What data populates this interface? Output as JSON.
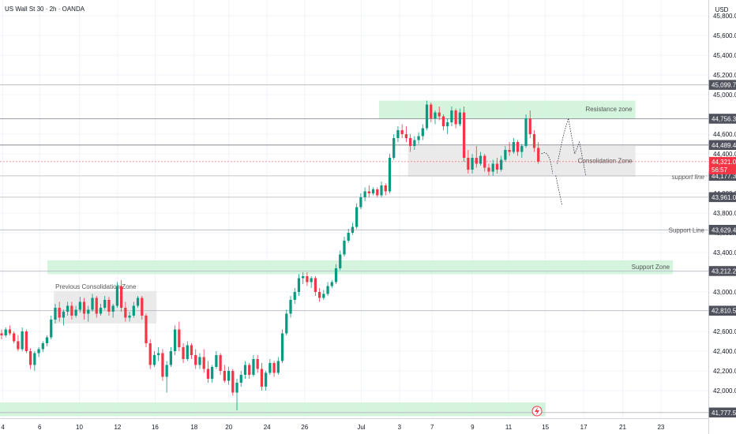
{
  "header": {
    "symbol_title": "US Wall St 30 · 2h · OANDA"
  },
  "price_axis": {
    "currency": "USD",
    "ticks": [
      "45,800.0",
      "45,600.0",
      "45,400.0",
      "45,200.0",
      "45,000.0",
      "44,600.0",
      "44,400.0",
      "44,000.0",
      "43,800.0",
      "43,600.0",
      "43,400.0",
      "43,200.0",
      "43,000.0",
      "42,600.0",
      "42,400.0",
      "42,200.0",
      "42,000.0"
    ],
    "tick_values": [
      45800,
      45600,
      45400,
      45200,
      45000,
      44600,
      44400,
      44000,
      43800,
      43600,
      43400,
      43200,
      43000,
      42600,
      42400,
      42200,
      42000
    ]
  },
  "time_axis": {
    "labels": [
      "4",
      "6",
      "10",
      "12",
      "16",
      "18",
      "20",
      "24",
      "26",
      "Jul",
      "3",
      "7",
      "9",
      "11",
      "15",
      "17",
      "21",
      "23"
    ],
    "positions": [
      0.004,
      0.056,
      0.112,
      0.166,
      0.219,
      0.274,
      0.323,
      0.377,
      0.43,
      0.51,
      0.564,
      0.61,
      0.667,
      0.718,
      0.77,
      0.824,
      0.879,
      0.933
    ]
  },
  "chart_data": {
    "type": "candlestick",
    "title": "US Wall St 30 · 2h · OANDA",
    "ylim": [
      41720,
      45960
    ],
    "current_price": {
      "value": 44321.0,
      "label": "44,321.0",
      "countdown": "56:57",
      "color": "#f23645"
    },
    "levels": [
      {
        "name": "resistance-level",
        "value": 44756.3,
        "label": "44,756.3",
        "style": "solid",
        "color": "#787b86"
      },
      {
        "name": "upper-level",
        "value": 44489.4,
        "label": "44,489.4",
        "style": "solid",
        "color": "#787b86"
      },
      {
        "name": "support-line-level",
        "value": 44177.3,
        "label": "44,177.3",
        "style": "solid",
        "color": "#b2b5be",
        "note": "support line"
      },
      {
        "name": "lower-level",
        "value": 43961.0,
        "label": "43,961.0",
        "style": "solid",
        "color": "#b2b5be"
      },
      {
        "name": "support-level-2",
        "value": 43629.4,
        "label": "43,629.4",
        "style": "solid",
        "color": "#b2b5be",
        "note": "Support Line"
      },
      {
        "name": "support-zone-level",
        "value": 43212.2,
        "label": "43,212.2",
        "style": "solid",
        "color": "#b2b5be"
      },
      {
        "name": "mid-level",
        "value": 42810.5,
        "label": "42,810.5",
        "style": "solid",
        "color": "#b2b5be"
      },
      {
        "name": "top-level",
        "value": 45099.7,
        "label": "45,099.7",
        "style": "solid",
        "color": "#b2b5be"
      },
      {
        "name": "bottom-level",
        "value": 41777.5,
        "label": "41,777.5",
        "style": "solid",
        "color": "#b2b5be"
      }
    ],
    "zones": [
      {
        "name": "resistance-zone",
        "label": "Resistance zone",
        "y_top": 44940,
        "y_bottom": 44760,
        "x_start": 0.535,
        "x_end": 0.897,
        "color": "#ccf2d8"
      },
      {
        "name": "consolidation-zone",
        "label": "Consolidation Zone",
        "y_top": 44480,
        "y_bottom": 44170,
        "x_start": 0.576,
        "x_end": 0.897,
        "color": "#e6e6e6"
      },
      {
        "name": "support-zone",
        "label": "Support Zone",
        "y_top": 43320,
        "y_bottom": 43180,
        "x_start": 0.067,
        "x_end": 0.95,
        "color": "#ccf2d8"
      },
      {
        "name": "previous-consolidation-zone",
        "label": "Previous Consolidation Zone",
        "y_top": 43010,
        "y_bottom": 42680,
        "x_start": 0.076,
        "x_end": 0.221,
        "color": "#e6e6e6"
      },
      {
        "name": "bottom-zone",
        "label": "",
        "y_top": 41880,
        "y_bottom": 41740,
        "x_start": 0.0,
        "x_end": 0.77,
        "color": "#ccf2d8"
      }
    ],
    "annotations": [
      {
        "name": "support-line-label",
        "text": "support line"
      },
      {
        "name": "support-line-label-2",
        "text": "Support Line"
      }
    ],
    "colors": {
      "up": "#089981",
      "down": "#f23645",
      "grid": "#f0f3fa"
    },
    "candles": [
      [
        42580,
        42620,
        42520,
        42560
      ],
      [
        42560,
        42640,
        42540,
        42620
      ],
      [
        42620,
        42660,
        42560,
        42580
      ],
      [
        42580,
        42600,
        42480,
        42500
      ],
      [
        42500,
        42560,
        42400,
        42420
      ],
      [
        42420,
        42640,
        42400,
        42600
      ],
      [
        42600,
        42620,
        42380,
        42400
      ],
      [
        42400,
        42430,
        42220,
        42260
      ],
      [
        42260,
        42400,
        42200,
        42380
      ],
      [
        42380,
        42440,
        42340,
        42420
      ],
      [
        42420,
        42500,
        42390,
        42480
      ],
      [
        42480,
        42560,
        42450,
        42540
      ],
      [
        42540,
        42760,
        42520,
        42720
      ],
      [
        42720,
        42880,
        42680,
        42840
      ],
      [
        42840,
        42900,
        42700,
        42740
      ],
      [
        42740,
        42820,
        42660,
        42800
      ],
      [
        42800,
        42900,
        42760,
        42860
      ],
      [
        42860,
        42900,
        42720,
        42760
      ],
      [
        42760,
        42860,
        42740,
        42820
      ],
      [
        42820,
        42950,
        42790,
        42900
      ],
      [
        42900,
        42940,
        42720,
        42780
      ],
      [
        42780,
        42860,
        42700,
        42820
      ],
      [
        42820,
        42980,
        42800,
        42940
      ],
      [
        42940,
        42960,
        42740,
        42780
      ],
      [
        42780,
        42880,
        42760,
        42840
      ],
      [
        42840,
        42960,
        42820,
        42920
      ],
      [
        42920,
        42950,
        42760,
        42800
      ],
      [
        42800,
        42880,
        42740,
        42860
      ],
      [
        42860,
        43100,
        42840,
        43060
      ],
      [
        43060,
        43120,
        42800,
        42840
      ],
      [
        42840,
        42900,
        42700,
        42740
      ],
      [
        42740,
        42800,
        42700,
        42760
      ],
      [
        42760,
        42900,
        42740,
        42860
      ],
      [
        42860,
        42960,
        42840,
        42940
      ],
      [
        42940,
        42960,
        42720,
        42760
      ],
      [
        42760,
        42780,
        42440,
        42480
      ],
      [
        42480,
        42520,
        42220,
        42260
      ],
      [
        42260,
        42400,
        42240,
        42360
      ],
      [
        42360,
        42440,
        42300,
        42380
      ],
      [
        42380,
        42420,
        42100,
        42140
      ],
      [
        42140,
        42300,
        41980,
        42260
      ],
      [
        42260,
        42440,
        42240,
        42400
      ],
      [
        42400,
        42660,
        42360,
        42620
      ],
      [
        42620,
        42700,
        42400,
        42440
      ],
      [
        42440,
        42480,
        42280,
        42320
      ],
      [
        42320,
        42500,
        42300,
        42460
      ],
      [
        42460,
        42480,
        42320,
        42360
      ],
      [
        42360,
        42420,
        42220,
        42260
      ],
      [
        42260,
        42380,
        42220,
        42340
      ],
      [
        42340,
        42420,
        42180,
        42220
      ],
      [
        42220,
        42300,
        42080,
        42120
      ],
      [
        42120,
        42260,
        42080,
        42240
      ],
      [
        42240,
        42400,
        42220,
        42360
      ],
      [
        42360,
        42380,
        42160,
        42200
      ],
      [
        42200,
        42260,
        42080,
        42100
      ],
      [
        42100,
        42240,
        42060,
        42200
      ],
      [
        42200,
        42220,
        41950,
        41980
      ],
      [
        41980,
        42120,
        41800,
        42080
      ],
      [
        42080,
        42200,
        42040,
        42160
      ],
      [
        42160,
        42300,
        42120,
        42260
      ],
      [
        42260,
        42280,
        42120,
        42160
      ],
      [
        42160,
        42360,
        42140,
        42320
      ],
      [
        42320,
        42360,
        42180,
        42220
      ],
      [
        42220,
        42280,
        42000,
        42040
      ],
      [
        42040,
        42200,
        42000,
        42180
      ],
      [
        42180,
        42320,
        42160,
        42280
      ],
      [
        42280,
        42300,
        42140,
        42180
      ],
      [
        42180,
        42340,
        42160,
        42300
      ],
      [
        42300,
        42620,
        42280,
        42580
      ],
      [
        42580,
        42820,
        42560,
        42780
      ],
      [
        42780,
        42960,
        42740,
        42920
      ],
      [
        42920,
        43040,
        42880,
        43000
      ],
      [
        43000,
        43180,
        42960,
        43140
      ],
      [
        43140,
        43200,
        43080,
        43160
      ],
      [
        43160,
        43200,
        43060,
        43100
      ],
      [
        43100,
        43160,
        43040,
        43140
      ],
      [
        43140,
        43160,
        42960,
        43000
      ],
      [
        43000,
        43040,
        42900,
        42940
      ],
      [
        42940,
        43020,
        42920,
        42980
      ],
      [
        42980,
        43100,
        42960,
        43060
      ],
      [
        43060,
        43120,
        43040,
        43100
      ],
      [
        43100,
        43280,
        43080,
        43240
      ],
      [
        43240,
        43420,
        43220,
        43380
      ],
      [
        43380,
        43560,
        43360,
        43520
      ],
      [
        43520,
        43640,
        43500,
        43600
      ],
      [
        43600,
        43700,
        43580,
        43660
      ],
      [
        43660,
        43900,
        43640,
        43860
      ],
      [
        43860,
        44000,
        43840,
        43960
      ],
      [
        43960,
        44060,
        43920,
        44020
      ],
      [
        44020,
        44080,
        43960,
        44000
      ],
      [
        44000,
        44060,
        43980,
        44040
      ],
      [
        44040,
        44060,
        43960,
        43980
      ],
      [
        43980,
        44120,
        43960,
        44080
      ],
      [
        44080,
        44100,
        43980,
        44020
      ],
      [
        44020,
        44400,
        44000,
        44360
      ],
      [
        44360,
        44600,
        44340,
        44560
      ],
      [
        44560,
        44680,
        44520,
        44640
      ],
      [
        44640,
        44700,
        44560,
        44600
      ],
      [
        44600,
        44680,
        44520,
        44560
      ],
      [
        44560,
        44600,
        44420,
        44480
      ],
      [
        44480,
        44580,
        44440,
        44540
      ],
      [
        44540,
        44620,
        44500,
        44580
      ],
      [
        44580,
        44700,
        44540,
        44660
      ],
      [
        44660,
        44940,
        44640,
        44900
      ],
      [
        44900,
        44920,
        44720,
        44760
      ],
      [
        44760,
        44840,
        44700,
        44820
      ],
      [
        44820,
        44880,
        44740,
        44780
      ],
      [
        44780,
        44800,
        44640,
        44680
      ],
      [
        44680,
        44760,
        44600,
        44720
      ],
      [
        44720,
        44880,
        44680,
        44840
      ],
      [
        44840,
        44860,
        44660,
        44700
      ],
      [
        44700,
        44860,
        44680,
        44820
      ],
      [
        44820,
        44880,
        44320,
        44360
      ],
      [
        44360,
        44440,
        44200,
        44240
      ],
      [
        44240,
        44400,
        44200,
        44360
      ],
      [
        44360,
        44480,
        44260,
        44300
      ],
      [
        44300,
        44420,
        44280,
        44380
      ],
      [
        44380,
        44400,
        44220,
        44260
      ],
      [
        44260,
        44300,
        44180,
        44220
      ],
      [
        44220,
        44340,
        44180,
        44300
      ],
      [
        44300,
        44360,
        44200,
        44240
      ],
      [
        44240,
        44380,
        44220,
        44340
      ],
      [
        44340,
        44480,
        44320,
        44440
      ],
      [
        44440,
        44520,
        44380,
        44420
      ],
      [
        44420,
        44560,
        44400,
        44520
      ],
      [
        44520,
        44540,
        44380,
        44420
      ],
      [
        44420,
        44500,
        44360,
        44480
      ],
      [
        44480,
        44800,
        44460,
        44760
      ],
      [
        44760,
        44840,
        44560,
        44600
      ],
      [
        44600,
        44640,
        44420,
        44460
      ],
      [
        44460,
        44520,
        44300,
        44321
      ]
    ]
  }
}
